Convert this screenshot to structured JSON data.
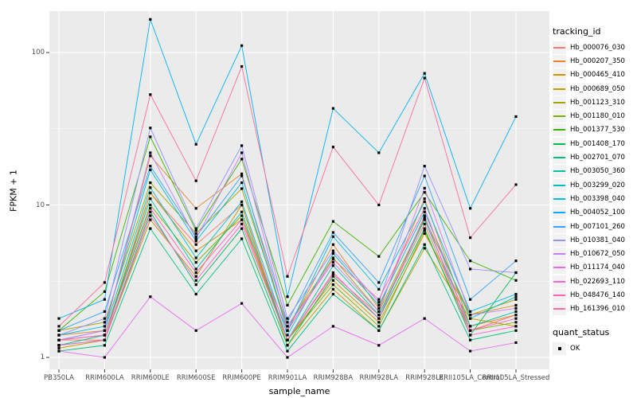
{
  "figure": {
    "background": "#FFFFFF",
    "panel_background": "#EBEBEB",
    "grid_color": "#FFFFFF",
    "tick_label_color": "#4D4D4D",
    "point_color": "#000000"
  },
  "chart_data": {
    "type": "line",
    "title": "",
    "xlabel": "sample_name",
    "ylabel": "FPKM + 1",
    "y_scale": "log10",
    "y_ticks": [
      1,
      10,
      100
    ],
    "y_minor_ticks": [
      3.162,
      31.62
    ],
    "ylim": [
      0.84,
      187
    ],
    "grid": true,
    "marker": "black-square",
    "legend_position": "right",
    "legend_title": "tracking_id",
    "legend2_title": "quant_status",
    "legend2_items": [
      {
        "label": "OK",
        "marker": "black-square"
      }
    ],
    "categories": [
      "PB350LA",
      "RRIM600LA",
      "RRIM600LE",
      "RRIM600SE",
      "RRIM600PE",
      "RRIM901LA",
      "RRIM928BA",
      "RRIM928LA",
      "RRIM928LE",
      "RRII105LA_Control",
      "RRII105LA_Stressed"
    ],
    "series": [
      {
        "name": "Hb_000076_030",
        "color": "#F8766D",
        "values": [
          1.3,
          1.3,
          12,
          5.5,
          10,
          1.3,
          3.5,
          1.9,
          7.5,
          1.5,
          1.9
        ]
      },
      {
        "name": "Hb_000207_350",
        "color": "#EA8331",
        "values": [
          1.4,
          1.5,
          21,
          9.5,
          16,
          1.5,
          5.5,
          2.1,
          11,
          1.6,
          1.9
        ]
      },
      {
        "name": "Hb_000465_410",
        "color": "#D89000",
        "values": [
          1.2,
          1.4,
          12,
          5.0,
          8.0,
          1.3,
          3.2,
          1.7,
          6.5,
          1.9,
          2.2
        ]
      },
      {
        "name": "Hb_000689_050",
        "color": "#C09B00",
        "values": [
          1.15,
          1.3,
          8.0,
          3.4,
          10,
          1.2,
          2.8,
          1.5,
          5.2,
          1.8,
          1.6
        ]
      },
      {
        "name": "Hb_001123_310",
        "color": "#A3A500",
        "values": [
          1.5,
          1.7,
          14,
          6.5,
          12.8,
          1.6,
          4.5,
          2.0,
          8.2,
          1.9,
          2.4
        ]
      },
      {
        "name": "Hb_001180_010",
        "color": "#7CAE00",
        "values": [
          1.3,
          1.4,
          10,
          4.2,
          8.5,
          1.3,
          3.0,
          1.6,
          6.8,
          1.5,
          1.7
        ]
      },
      {
        "name": "Hb_001377_530",
        "color": "#39B600",
        "values": [
          1.5,
          2.7,
          28,
          6.8,
          20,
          2.2,
          7.8,
          4.6,
          12.1,
          4.3,
          3.2
        ]
      },
      {
        "name": "Hb_001408_170",
        "color": "#00BB4E",
        "values": [
          1.2,
          1.3,
          9.0,
          3.0,
          7.0,
          1.2,
          3.4,
          1.8,
          7.0,
          1.4,
          3.6
        ]
      },
      {
        "name": "Hb_002701_070",
        "color": "#00BF7D",
        "values": [
          1.1,
          1.2,
          7.0,
          2.6,
          6.0,
          1.1,
          2.6,
          1.5,
          5.5,
          1.3,
          1.5
        ]
      },
      {
        "name": "Hb_003050_360",
        "color": "#00C1A3",
        "values": [
          1.2,
          1.4,
          11,
          3.8,
          9.0,
          1.3,
          4.0,
          1.9,
          8.0,
          1.6,
          2.0
        ]
      },
      {
        "name": "Hb_003299_020",
        "color": "#00BFC4",
        "values": [
          1.3,
          1.5,
          13,
          4.5,
          10.5,
          1.4,
          4.8,
          2.2,
          9.0,
          1.8,
          2.5
        ]
      },
      {
        "name": "Hb_003398_040",
        "color": "#00BAE0",
        "values": [
          1.4,
          1.6,
          17,
          5.8,
          14,
          1.5,
          6.2,
          2.8,
          10.5,
          2.0,
          2.6
        ]
      },
      {
        "name": "Hb_004052_100",
        "color": "#00B0F6",
        "values": [
          1.8,
          2.4,
          165,
          25,
          111,
          2.5,
          43,
          22,
          73,
          9.5,
          38
        ]
      },
      {
        "name": "Hb_007101_260",
        "color": "#35A2FF",
        "values": [
          1.5,
          2.0,
          18,
          6.2,
          15.5,
          1.7,
          6.6,
          3.1,
          15.5,
          2.4,
          4.3
        ]
      },
      {
        "name": "Hb_010381_040",
        "color": "#9590FF",
        "values": [
          1.4,
          1.8,
          32,
          7.0,
          24.5,
          1.8,
          5.0,
          2.3,
          18,
          3.8,
          3.6
        ]
      },
      {
        "name": "Hb_010672_050",
        "color": "#C77CFF",
        "values": [
          1.3,
          1.5,
          22,
          6.0,
          22,
          1.6,
          4.2,
          2.0,
          12.9,
          1.9,
          2.1
        ]
      },
      {
        "name": "Hb_011174_040",
        "color": "#E76BF3",
        "values": [
          1.1,
          1.0,
          2.5,
          1.5,
          2.26,
          1.0,
          1.6,
          1.2,
          1.8,
          1.1,
          1.25
        ]
      },
      {
        "name": "Hb_022693_110",
        "color": "#FA62DB",
        "values": [
          1.2,
          1.3,
          8.5,
          3.2,
          7.5,
          1.3,
          3.6,
          1.8,
          8.5,
          1.4,
          1.6
        ]
      },
      {
        "name": "Hb_048476_140",
        "color": "#FF62BC",
        "values": [
          1.3,
          1.4,
          9.5,
          3.6,
          8.0,
          1.5,
          4.4,
          2.4,
          9.5,
          1.5,
          1.8
        ]
      },
      {
        "name": "Hb_161396_010",
        "color": "#FF6A98",
        "values": [
          1.6,
          3.1,
          53,
          14.4,
          81,
          3.4,
          24,
          10,
          68,
          6.1,
          13.6
        ]
      }
    ]
  }
}
